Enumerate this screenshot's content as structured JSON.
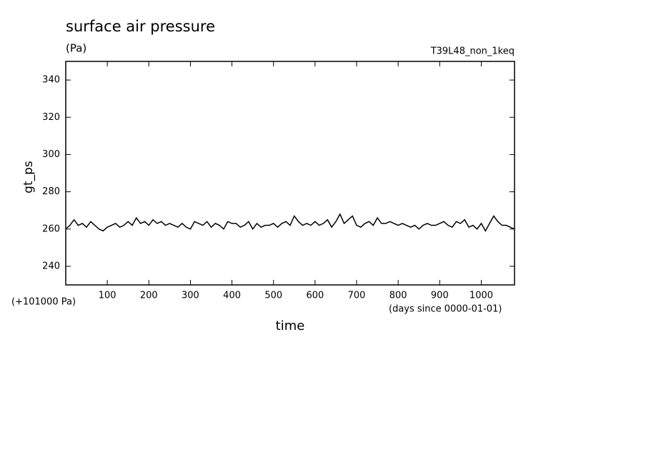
{
  "chart_data": {
    "type": "line",
    "title": "surface air pressure",
    "subtitle": "(Pa)",
    "annotation": "T39L48_non_1keq",
    "y_label": "gt_ps",
    "x_label": "time",
    "y_offset_label": "(+101000 Pa)",
    "x_unit_label": "(days since 0000-01-01)",
    "x": [
      0,
      10,
      20,
      30,
      40,
      50,
      60,
      70,
      80,
      90,
      100,
      110,
      120,
      130,
      140,
      150,
      160,
      170,
      180,
      190,
      200,
      210,
      220,
      230,
      240,
      250,
      260,
      270,
      280,
      290,
      300,
      310,
      320,
      330,
      340,
      350,
      360,
      370,
      380,
      390,
      400,
      410,
      420,
      430,
      440,
      450,
      460,
      470,
      480,
      490,
      500,
      510,
      520,
      530,
      540,
      550,
      560,
      570,
      580,
      590,
      600,
      610,
      620,
      630,
      640,
      650,
      660,
      670,
      680,
      690,
      700,
      710,
      720,
      730,
      740,
      750,
      760,
      770,
      780,
      790,
      800,
      810,
      820,
      830,
      840,
      850,
      860,
      870,
      880,
      890,
      900,
      910,
      920,
      930,
      940,
      950,
      960,
      970,
      980,
      990,
      1000,
      1010,
      1020,
      1030,
      1040,
      1050,
      1060,
      1070,
      1080
    ],
    "series": [
      {
        "name": "gt_ps",
        "color": "#000000",
        "values": [
          260,
          262,
          265,
          262,
          263,
          261,
          264,
          262,
          260,
          259,
          261,
          262,
          263,
          261,
          262,
          264,
          262,
          266,
          263,
          264,
          262,
          265,
          263,
          264,
          262,
          263,
          262,
          261,
          263,
          261,
          260,
          264,
          263,
          262,
          264,
          261,
          263,
          262,
          260,
          264,
          263,
          263,
          261,
          262,
          264,
          260,
          263,
          261,
          262,
          262,
          263,
          261,
          263,
          264,
          262,
          267,
          264,
          262,
          263,
          262,
          264,
          262,
          263,
          265,
          261,
          264,
          268,
          263,
          265,
          267,
          262,
          261,
          263,
          264,
          262,
          266,
          263,
          263,
          264,
          263,
          262,
          263,
          262,
          261,
          262,
          260,
          262,
          263,
          262,
          262,
          263,
          264,
          262,
          261,
          264,
          263,
          265,
          261,
          262,
          260,
          263,
          259,
          263,
          267,
          264,
          262,
          262,
          261,
          260
        ]
      }
    ],
    "xlim": [
      0,
      1080
    ],
    "ylim": [
      230,
      350
    ],
    "xticks": [
      100,
      200,
      300,
      400,
      500,
      600,
      700,
      800,
      900,
      1000
    ],
    "yticks": [
      240,
      260,
      280,
      300,
      320,
      340
    ]
  }
}
